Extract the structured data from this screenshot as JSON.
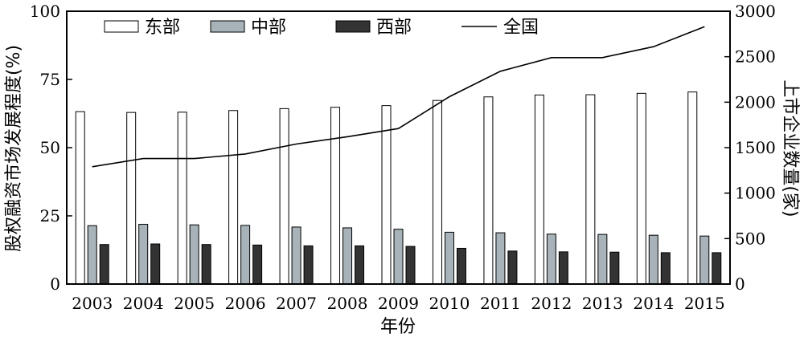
{
  "chart_data": {
    "type": "bar",
    "categories": [
      "2003",
      "2004",
      "2005",
      "2006",
      "2007",
      "2008",
      "2009",
      "2010",
      "2011",
      "2012",
      "2013",
      "2014",
      "2015"
    ],
    "xlabel": "年份",
    "ylabel_left": "股权融资市场发展程度(%)",
    "ylabel_right": "上市企业数量(家)",
    "ylim_left": [
      0,
      100
    ],
    "ylim_right": [
      0,
      3000
    ],
    "yticks_left": [
      "0",
      "25",
      "50",
      "75",
      "100"
    ],
    "yticks_right": [
      "0",
      "500",
      "1000",
      "1500",
      "2000",
      "2500",
      "3000"
    ],
    "grid": false,
    "legend_position": "top",
    "series": [
      {
        "name": "东部",
        "kind": "bar",
        "axis": "left",
        "color": "#ffffff",
        "values": [
          63.2,
          62.9,
          63.0,
          63.6,
          64.3,
          64.8,
          65.4,
          67.3,
          68.6,
          69.3,
          69.4,
          69.9,
          70.4
        ]
      },
      {
        "name": "中部",
        "kind": "bar",
        "axis": "left",
        "color": "#a7b3b8",
        "values": [
          21.4,
          21.9,
          21.7,
          21.5,
          20.9,
          20.6,
          20.1,
          19.0,
          18.8,
          18.3,
          18.2,
          17.9,
          17.6
        ]
      },
      {
        "name": "西部",
        "kind": "bar",
        "axis": "left",
        "color": "#333333",
        "values": [
          14.5,
          14.7,
          14.5,
          14.3,
          14.0,
          14.0,
          13.8,
          13.1,
          12.1,
          11.8,
          11.7,
          11.5,
          11.5
        ]
      },
      {
        "name": "全国",
        "kind": "line",
        "axis": "right",
        "color": "#000000",
        "values": [
          1290,
          1380,
          1380,
          1430,
          1540,
          1620,
          1710,
          2060,
          2340,
          2490,
          2490,
          2610,
          2830
        ]
      }
    ]
  }
}
